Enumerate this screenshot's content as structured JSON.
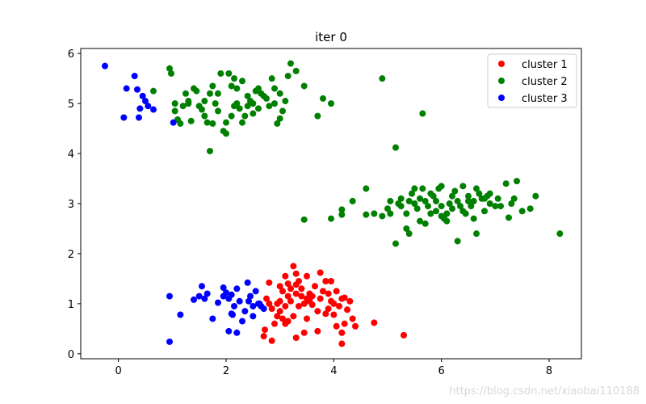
{
  "chart_data": {
    "type": "scatter",
    "title": "iter 0",
    "xlabel": "",
    "ylabel": "",
    "xlim": [
      -0.7,
      8.6
    ],
    "ylim": [
      -0.1,
      6.1
    ],
    "xticks": [
      0,
      2,
      4,
      6,
      8
    ],
    "yticks": [
      0,
      1,
      2,
      3,
      4,
      5,
      6
    ],
    "grid": false,
    "legend_position": "top-right",
    "series": [
      {
        "name": "cluster 1",
        "color": "#ff0000",
        "points": [
          [
            2.8,
            1.42
          ],
          [
            3.0,
            1.35
          ],
          [
            3.05,
            1.25
          ],
          [
            3.1,
            1.55
          ],
          [
            3.15,
            1.4
          ],
          [
            3.2,
            1.3
          ],
          [
            3.25,
            1.75
          ],
          [
            3.3,
            1.6
          ],
          [
            3.35,
            1.45
          ],
          [
            3.4,
            1.3
          ],
          [
            3.5,
            1.55
          ],
          [
            3.55,
            1.2
          ],
          [
            3.65,
            1.35
          ],
          [
            3.75,
            1.62
          ],
          [
            3.85,
            1.45
          ],
          [
            3.95,
            1.45
          ],
          [
            3.9,
            1.2
          ],
          [
            4.05,
            1.25
          ],
          [
            4.15,
            1.1
          ],
          [
            4.2,
            1.12
          ],
          [
            4.3,
            1.05
          ],
          [
            4.0,
            1.0
          ],
          [
            4.1,
            0.95
          ],
          [
            4.25,
            0.88
          ],
          [
            3.85,
            0.8
          ],
          [
            3.9,
            0.9
          ],
          [
            3.7,
            0.85
          ],
          [
            3.6,
            0.98
          ],
          [
            3.5,
            1.1
          ],
          [
            3.4,
            1.15
          ],
          [
            3.3,
            1.2
          ],
          [
            3.2,
            1.05
          ],
          [
            3.1,
            0.95
          ],
          [
            3.0,
            0.85
          ],
          [
            2.95,
            0.75
          ],
          [
            2.9,
            0.6
          ],
          [
            3.0,
            1.05
          ],
          [
            3.05,
            0.7
          ],
          [
            3.15,
            0.65
          ],
          [
            3.25,
            0.75
          ],
          [
            3.35,
            0.95
          ],
          [
            3.45,
            1.0
          ],
          [
            3.55,
            1.05
          ],
          [
            3.6,
            1.15
          ],
          [
            3.75,
            1.1
          ],
          [
            2.8,
            1.0
          ],
          [
            2.75,
            1.1
          ],
          [
            2.85,
            0.9
          ],
          [
            3.1,
            0.6
          ],
          [
            3.3,
            0.32
          ],
          [
            3.45,
            0.42
          ],
          [
            3.7,
            0.45
          ],
          [
            4.05,
            0.55
          ],
          [
            4.15,
            0.42
          ],
          [
            4.2,
            0.6
          ],
          [
            4.4,
            0.55
          ],
          [
            4.75,
            0.62
          ],
          [
            4.15,
            0.2
          ],
          [
            5.3,
            0.37
          ],
          [
            2.85,
            0.26
          ],
          [
            2.7,
            0.35
          ],
          [
            2.72,
            0.48
          ],
          [
            3.95,
            1.05
          ],
          [
            3.3,
            1.38
          ],
          [
            3.5,
            0.7
          ],
          [
            3.8,
            1.25
          ],
          [
            4.0,
            0.78
          ],
          [
            3.15,
            1.15
          ],
          [
            2.95,
            1.0
          ],
          [
            4.35,
            0.7
          ]
        ]
      },
      {
        "name": "cluster 2",
        "color": "#008000",
        "points": [
          [
            0.95,
            5.7
          ],
          [
            0.98,
            5.6
          ],
          [
            1.05,
            5.0
          ],
          [
            1.05,
            4.85
          ],
          [
            1.1,
            4.68
          ],
          [
            1.15,
            4.6
          ],
          [
            1.2,
            4.95
          ],
          [
            1.25,
            5.2
          ],
          [
            1.3,
            5.05
          ],
          [
            1.35,
            4.65
          ],
          [
            1.4,
            5.3
          ],
          [
            1.45,
            5.25
          ],
          [
            1.5,
            4.95
          ],
          [
            1.55,
            4.88
          ],
          [
            1.6,
            4.75
          ],
          [
            1.65,
            4.62
          ],
          [
            1.7,
            5.2
          ],
          [
            1.75,
            5.35
          ],
          [
            1.8,
            5.0
          ],
          [
            1.85,
            4.85
          ],
          [
            1.9,
            5.6
          ],
          [
            1.95,
            4.45
          ],
          [
            2.0,
            4.4
          ],
          [
            2.05,
            5.6
          ],
          [
            2.1,
            5.35
          ],
          [
            2.15,
            5.5
          ],
          [
            2.2,
            5.0
          ],
          [
            2.25,
            4.9
          ],
          [
            2.3,
            4.62
          ],
          [
            2.35,
            4.75
          ],
          [
            2.4,
            4.95
          ],
          [
            2.45,
            5.05
          ],
          [
            2.5,
            4.8
          ],
          [
            2.55,
            5.25
          ],
          [
            2.6,
            4.9
          ],
          [
            2.65,
            5.2
          ],
          [
            2.7,
            5.15
          ],
          [
            2.75,
            5.1
          ],
          [
            2.8,
            4.95
          ],
          [
            2.85,
            5.5
          ],
          [
            2.9,
            5.0
          ],
          [
            2.95,
            4.6
          ],
          [
            3.0,
            4.7
          ],
          [
            3.05,
            4.85
          ],
          [
            3.1,
            5.05
          ],
          [
            3.15,
            5.55
          ],
          [
            3.2,
            5.8
          ],
          [
            3.3,
            5.65
          ],
          [
            3.45,
            5.35
          ],
          [
            3.7,
            4.75
          ],
          [
            3.8,
            5.1
          ],
          [
            3.95,
            5.0
          ],
          [
            0.65,
            5.25
          ],
          [
            1.7,
            4.05
          ],
          [
            2.0,
            4.62
          ],
          [
            2.15,
            4.95
          ],
          [
            2.2,
            5.3
          ],
          [
            2.3,
            5.45
          ],
          [
            2.4,
            5.15
          ],
          [
            2.5,
            5.0
          ],
          [
            1.85,
            5.2
          ],
          [
            1.6,
            5.05
          ],
          [
            1.3,
            5.0
          ],
          [
            2.6,
            5.3
          ],
          [
            2.9,
            5.3
          ],
          [
            3.0,
            5.2
          ],
          [
            2.1,
            4.75
          ],
          [
            1.75,
            4.6
          ],
          [
            4.9,
            5.5
          ],
          [
            5.65,
            4.8
          ],
          [
            5.15,
            4.12
          ],
          [
            3.45,
            2.68
          ],
          [
            3.95,
            2.7
          ],
          [
            4.15,
            2.78
          ],
          [
            4.15,
            2.88
          ],
          [
            4.35,
            3.05
          ],
          [
            4.6,
            3.3
          ],
          [
            4.6,
            2.78
          ],
          [
            4.75,
            2.8
          ],
          [
            4.9,
            2.75
          ],
          [
            5.0,
            2.9
          ],
          [
            5.05,
            3.05
          ],
          [
            5.15,
            2.2
          ],
          [
            5.2,
            3.0
          ],
          [
            5.25,
            3.1
          ],
          [
            5.35,
            2.8
          ],
          [
            5.4,
            3.05
          ],
          [
            5.45,
            3.2
          ],
          [
            5.5,
            3.0
          ],
          [
            5.55,
            2.9
          ],
          [
            5.6,
            2.65
          ],
          [
            5.65,
            3.3
          ],
          [
            5.7,
            3.05
          ],
          [
            5.75,
            2.95
          ],
          [
            5.8,
            2.8
          ],
          [
            5.85,
            3.15
          ],
          [
            5.9,
            2.85
          ],
          [
            5.95,
            3.3
          ],
          [
            6.0,
            2.75
          ],
          [
            6.05,
            2.7
          ],
          [
            6.1,
            2.65
          ],
          [
            6.15,
            3.0
          ],
          [
            6.2,
            2.9
          ],
          [
            6.25,
            3.25
          ],
          [
            6.3,
            3.05
          ],
          [
            6.35,
            2.95
          ],
          [
            6.4,
            3.35
          ],
          [
            6.45,
            2.8
          ],
          [
            6.5,
            3.15
          ],
          [
            6.55,
            2.95
          ],
          [
            6.6,
            3.05
          ],
          [
            6.65,
            3.3
          ],
          [
            6.7,
            3.2
          ],
          [
            6.75,
            3.1
          ],
          [
            6.8,
            2.85
          ],
          [
            6.85,
            3.15
          ],
          [
            6.9,
            3.0
          ],
          [
            7.0,
            2.95
          ],
          [
            7.05,
            3.1
          ],
          [
            7.2,
            3.4
          ],
          [
            7.25,
            2.72
          ],
          [
            7.3,
            3.0
          ],
          [
            7.35,
            3.1
          ],
          [
            7.4,
            3.45
          ],
          [
            7.5,
            2.85
          ],
          [
            7.65,
            2.9
          ],
          [
            7.75,
            3.15
          ],
          [
            8.2,
            2.4
          ],
          [
            6.65,
            2.4
          ],
          [
            6.3,
            2.25
          ],
          [
            5.4,
            2.4
          ],
          [
            5.35,
            2.5
          ],
          [
            5.6,
            3.1
          ],
          [
            5.7,
            2.6
          ],
          [
            6.0,
            2.95
          ],
          [
            6.1,
            2.8
          ],
          [
            5.8,
            3.2
          ],
          [
            6.5,
            3.05
          ],
          [
            6.8,
            3.1
          ],
          [
            5.9,
            3.05
          ],
          [
            6.2,
            3.15
          ],
          [
            5.5,
            3.3
          ],
          [
            6.0,
            3.35
          ],
          [
            6.4,
            2.85
          ],
          [
            5.25,
            2.95
          ],
          [
            6.9,
            3.2
          ],
          [
            7.1,
            2.95
          ],
          [
            5.05,
            2.8
          ],
          [
            6.6,
            2.7
          ]
        ]
      },
      {
        "name": "cluster 3",
        "color": "#0000ff",
        "points": [
          [
            -0.25,
            5.75
          ],
          [
            0.15,
            5.3
          ],
          [
            0.3,
            5.55
          ],
          [
            0.35,
            5.28
          ],
          [
            0.4,
            4.9
          ],
          [
            0.45,
            5.15
          ],
          [
            0.5,
            5.05
          ],
          [
            0.55,
            4.95
          ],
          [
            0.1,
            4.72
          ],
          [
            0.38,
            4.72
          ],
          [
            0.65,
            4.88
          ],
          [
            1.02,
            4.62
          ],
          [
            0.95,
            1.15
          ],
          [
            1.15,
            0.78
          ],
          [
            1.4,
            1.08
          ],
          [
            1.5,
            1.15
          ],
          [
            1.55,
            1.35
          ],
          [
            1.6,
            1.1
          ],
          [
            1.65,
            1.2
          ],
          [
            1.75,
            0.7
          ],
          [
            1.85,
            1.02
          ],
          [
            1.95,
            1.32
          ],
          [
            2.0,
            1.22
          ],
          [
            2.05,
            1.1
          ],
          [
            2.1,
            0.8
          ],
          [
            2.15,
            0.95
          ],
          [
            2.2,
            1.3
          ],
          [
            2.25,
            1.05
          ],
          [
            2.35,
            0.85
          ],
          [
            2.4,
            1.42
          ],
          [
            2.45,
            1.15
          ],
          [
            2.5,
            0.95
          ],
          [
            2.55,
            1.25
          ],
          [
            2.6,
            1.0
          ],
          [
            2.65,
            0.95
          ],
          [
            2.7,
            0.9
          ],
          [
            2.3,
            0.65
          ],
          [
            2.2,
            0.42
          ],
          [
            2.05,
            0.45
          ],
          [
            2.12,
            0.78
          ],
          [
            2.42,
            1.05
          ],
          [
            2.5,
            0.75
          ],
          [
            2.62,
            1.0
          ],
          [
            2.1,
            1.18
          ],
          [
            0.95,
            0.24
          ],
          [
            1.95,
            1.15
          ]
        ]
      }
    ]
  },
  "watermark": "https://blog.csdn.net/xiaobai110188"
}
